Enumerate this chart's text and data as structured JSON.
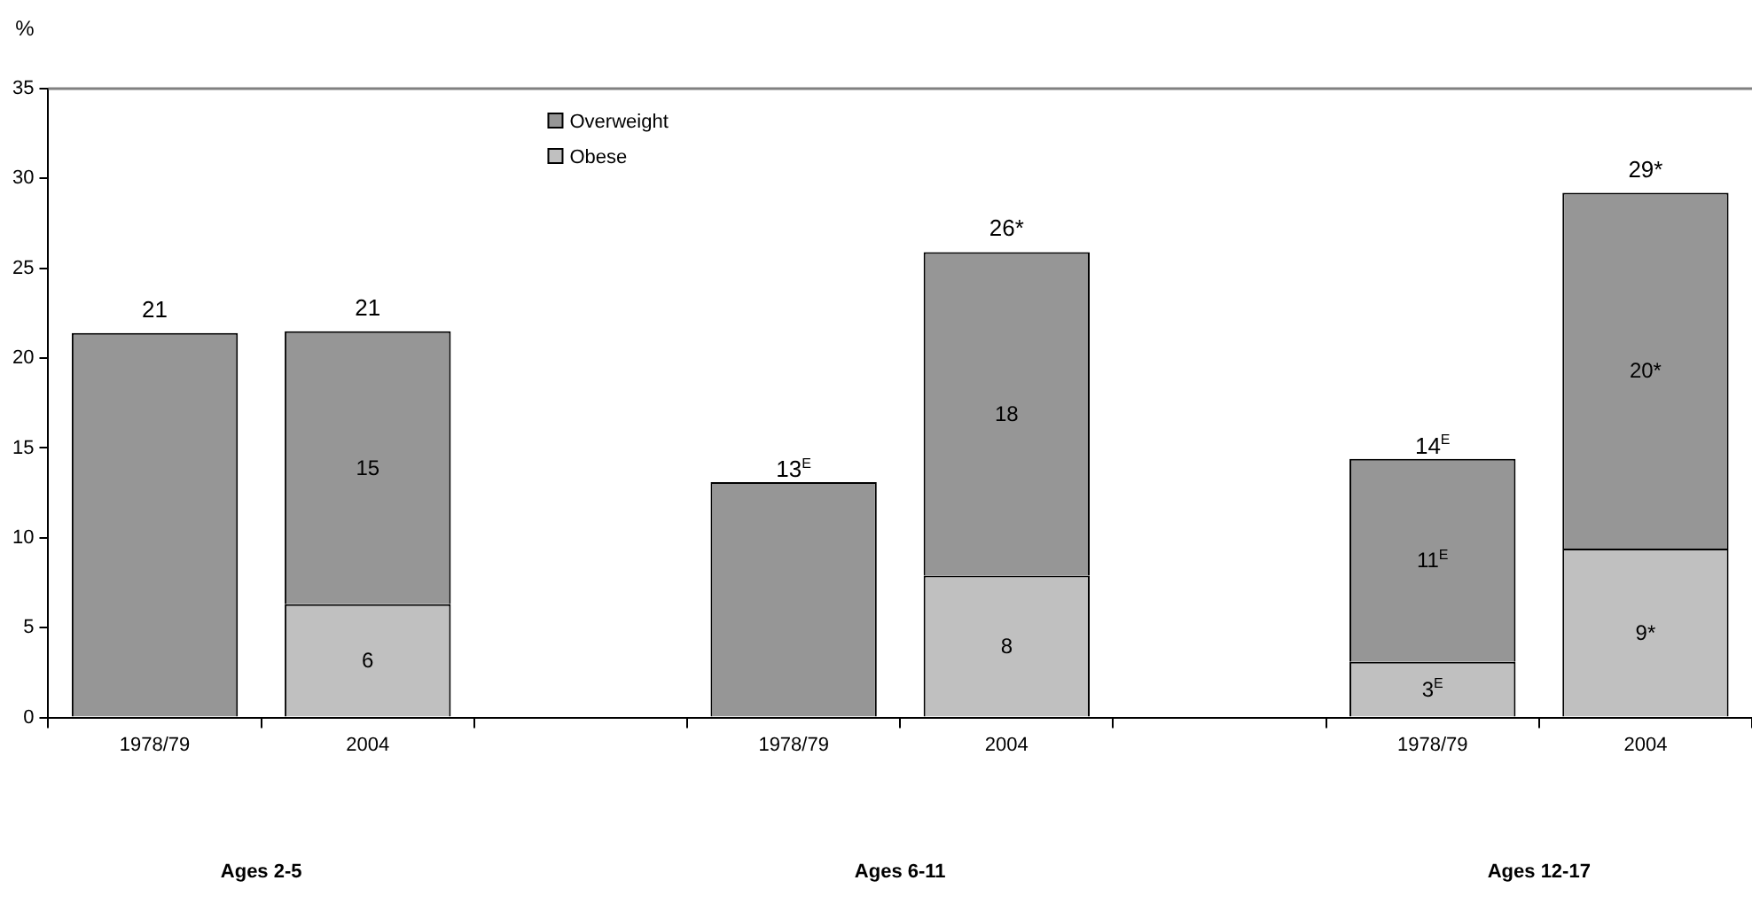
{
  "chart_data": {
    "type": "bar",
    "stacked": true,
    "ylabel": "%",
    "categories": [
      "1978/79",
      "2004",
      null,
      "1978/79",
      "2004",
      null,
      "1978/79",
      "2004"
    ],
    "series": [
      {
        "name": "Obese",
        "color": "#c0c0c0",
        "values": [
          null,
          6.3,
          null,
          null,
          7.9,
          null,
          3.1,
          9.4
        ],
        "value_labels": [
          null,
          "6",
          null,
          null,
          "8",
          null,
          "3$^{E}$",
          "9*"
        ]
      },
      {
        "name": "Overweight",
        "color": "#969696",
        "values": [
          21.4,
          15.2,
          null,
          13.1,
          18.0,
          null,
          11.3,
          19.8
        ],
        "value_labels": [
          null,
          "15",
          null,
          null,
          "18",
          null,
          "11$^{E}$",
          "20*"
        ]
      }
    ],
    "totals": [
      "21",
      "21",
      null,
      "13$^{E}$",
      "26*",
      null,
      "14$^{E}$",
      "29*"
    ],
    "ylim": [
      0,
      35
    ],
    "yticks": [
      0,
      5,
      10,
      15,
      20,
      25,
      30,
      35
    ],
    "grid": false,
    "legend": "top",
    "annotations": [
      "Ages 2-5",
      "Ages 6-11",
      "Ages 12-17"
    ]
  }
}
